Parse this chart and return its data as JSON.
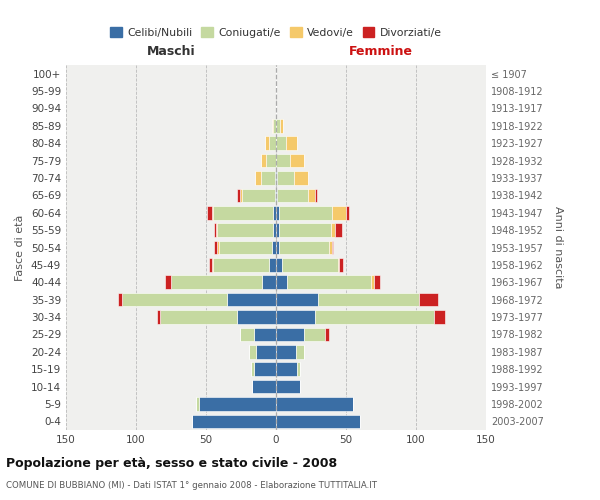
{
  "age_groups": [
    "0-4",
    "5-9",
    "10-14",
    "15-19",
    "20-24",
    "25-29",
    "30-34",
    "35-39",
    "40-44",
    "45-49",
    "50-54",
    "55-59",
    "60-64",
    "65-69",
    "70-74",
    "75-79",
    "80-84",
    "85-89",
    "90-94",
    "95-99",
    "100+"
  ],
  "birth_years": [
    "2003-2007",
    "1998-2002",
    "1993-1997",
    "1988-1992",
    "1983-1987",
    "1978-1982",
    "1973-1977",
    "1968-1972",
    "1963-1967",
    "1958-1962",
    "1953-1957",
    "1948-1952",
    "1943-1947",
    "1938-1942",
    "1933-1937",
    "1928-1932",
    "1923-1927",
    "1918-1922",
    "1913-1917",
    "1908-1912",
    "≤ 1907"
  ],
  "colors": {
    "celibi": "#3a6ea5",
    "coniugati": "#c5d9a0",
    "vedovi": "#f5c96a",
    "divorziati": "#cc2222"
  },
  "maschi": {
    "celibi": [
      60,
      55,
      17,
      16,
      14,
      16,
      28,
      35,
      10,
      5,
      3,
      2,
      2,
      1,
      1,
      0,
      0,
      0,
      0,
      0,
      0
    ],
    "coniugati": [
      0,
      2,
      0,
      2,
      5,
      10,
      55,
      75,
      65,
      40,
      38,
      40,
      43,
      23,
      10,
      7,
      5,
      2,
      0,
      0,
      0
    ],
    "vedovi": [
      0,
      0,
      0,
      0,
      0,
      0,
      0,
      0,
      0,
      1,
      1,
      1,
      1,
      2,
      4,
      4,
      3,
      1,
      0,
      0,
      0
    ],
    "divorziati": [
      0,
      0,
      0,
      0,
      0,
      0,
      2,
      3,
      4,
      2,
      2,
      1,
      3,
      2,
      0,
      0,
      0,
      0,
      0,
      0,
      0
    ]
  },
  "femmine": {
    "celibi": [
      60,
      55,
      17,
      15,
      14,
      20,
      28,
      30,
      8,
      4,
      2,
      2,
      2,
      1,
      1,
      0,
      0,
      0,
      0,
      0,
      0
    ],
    "coniugati": [
      0,
      0,
      0,
      2,
      6,
      15,
      85,
      72,
      60,
      40,
      36,
      37,
      38,
      22,
      12,
      10,
      7,
      3,
      0,
      0,
      0
    ],
    "vedovi": [
      0,
      0,
      0,
      0,
      0,
      0,
      0,
      0,
      2,
      1,
      2,
      3,
      10,
      5,
      10,
      10,
      8,
      2,
      0,
      0,
      0
    ],
    "divorziati": [
      0,
      0,
      0,
      0,
      0,
      3,
      8,
      14,
      4,
      3,
      1,
      5,
      2,
      1,
      0,
      0,
      0,
      0,
      0,
      0,
      0
    ]
  },
  "title": "Popolazione per età, sesso e stato civile - 2008",
  "subtitle": "COMUNE DI BUBBIANO (MI) - Dati ISTAT 1° gennaio 2008 - Elaborazione TUTTITALIA.IT",
  "xlabel_left": "Maschi",
  "xlabel_right": "Femmine",
  "ylabel_left": "Fasce di età",
  "ylabel_right": "Anni di nascita",
  "xlim": 150,
  "legend_labels": [
    "Celibi/Nubili",
    "Coniugati/e",
    "Vedovi/e",
    "Divorziati/e"
  ],
  "bg_color": "#ffffff",
  "plot_bg": "#f0f0ee",
  "grid_color": "#bbbbbb"
}
